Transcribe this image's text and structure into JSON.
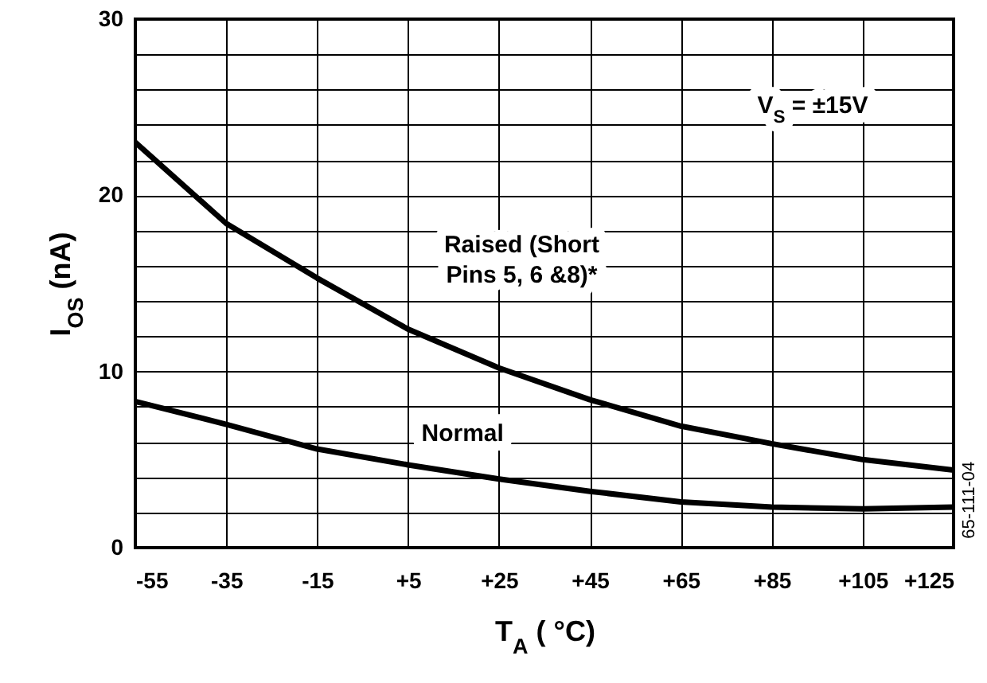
{
  "chart_data": {
    "type": "line",
    "xlabel": "T$_{A}$ ( °C)",
    "ylabel": "I$_{OS}$ (nA)",
    "x": [
      -55,
      -35,
      -15,
      5,
      25,
      45,
      65,
      85,
      105,
      125
    ],
    "series": [
      {
        "name": "Raised (Short Pins 5, 6 &8)*",
        "color": "#000000",
        "values": [
          23.0,
          18.4,
          15.3,
          12.4,
          10.2,
          8.4,
          6.9,
          5.9,
          5.0,
          4.4
        ]
      },
      {
        "name": "Normal",
        "color": "#000000",
        "values": [
          8.3,
          7.0,
          5.6,
          4.7,
          3.9,
          3.2,
          2.6,
          2.3,
          2.2,
          2.3
        ]
      }
    ],
    "xlim": [
      -55,
      125
    ],
    "xticks": [
      -55,
      -35,
      -15,
      {
        "value": 5,
        "label": "+5"
      },
      {
        "value": 25,
        "label": "+25"
      },
      {
        "value": 45,
        "label": "+45"
      },
      {
        "value": 65,
        "label": "+65"
      },
      {
        "value": 85,
        "label": "+85"
      },
      {
        "value": 105,
        "label": "+105"
      },
      {
        "value": 125,
        "label": "+125"
      }
    ],
    "ylim": [
      0,
      30
    ],
    "yticks": [
      0,
      {
        "value": 2,
        "label": null
      },
      {
        "value": 4,
        "label": null
      },
      {
        "value": 6,
        "label": null
      },
      {
        "value": 8,
        "label": null
      },
      10,
      {
        "value": 12,
        "label": null
      },
      {
        "value": 14,
        "label": null
      },
      {
        "value": 16,
        "label": null
      },
      {
        "value": 18,
        "label": null
      },
      20,
      {
        "value": 22,
        "label": null
      },
      {
        "value": 24,
        "label": null
      },
      {
        "value": 26,
        "label": null
      },
      {
        "value": 28,
        "label": null
      },
      30
    ],
    "grid": true,
    "line_style": "solid",
    "marker": "none",
    "annotations": [
      "V$_{S}$ = ±15V",
      "65-111-04"
    ]
  }
}
